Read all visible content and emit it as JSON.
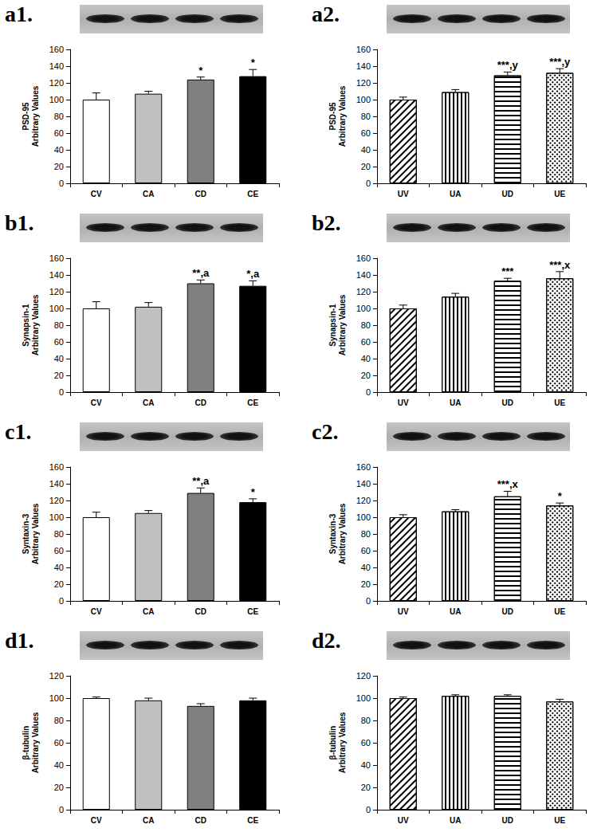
{
  "chart_data": [
    {
      "title": "a1.",
      "type": "bar",
      "ylabel": "PSD-95\nArbitrary Values",
      "categories": [
        "CV",
        "CA",
        "CD",
        "CE"
      ],
      "values": [
        100,
        107,
        124,
        128
      ],
      "errors": [
        8,
        3,
        3,
        8
      ],
      "annotations": [
        null,
        null,
        "*",
        "*"
      ],
      "colors": [
        "#ffffff",
        "#c0c0c0",
        "#808080",
        "#000000"
      ],
      "ylim": [
        0,
        160
      ],
      "yticks": [
        0,
        20,
        40,
        60,
        80,
        100,
        120,
        140,
        160
      ],
      "grid": false
    },
    {
      "title": "a2.",
      "type": "bar",
      "ylabel": "PSD-95\nArbitrary Values",
      "categories": [
        "UV",
        "UA",
        "UD",
        "UE"
      ],
      "values": [
        100,
        109,
        129,
        132
      ],
      "errors": [
        3,
        3,
        4,
        5
      ],
      "annotations": [
        null,
        null,
        "***,y",
        "***,y"
      ],
      "colors": [
        "#ffffff",
        "#ffffff",
        "#ffffff",
        "#ffffff"
      ],
      "ylim": [
        0,
        160
      ],
      "yticks": [
        0,
        20,
        40,
        60,
        80,
        100,
        120,
        140,
        160
      ],
      "grid": false
    },
    {
      "title": "b1.",
      "type": "bar",
      "ylabel": "Synapsin-1\nArbitrary Values",
      "categories": [
        "CV",
        "CA",
        "CD",
        "CE"
      ],
      "values": [
        100,
        102,
        130,
        127
      ],
      "errors": [
        8,
        5,
        4,
        6
      ],
      "annotations": [
        null,
        null,
        "**,a",
        "*,a"
      ],
      "colors": [
        "#ffffff",
        "#c0c0c0",
        "#808080",
        "#000000"
      ],
      "ylim": [
        0,
        160
      ],
      "yticks": [
        0,
        20,
        40,
        60,
        80,
        100,
        120,
        140,
        160
      ],
      "grid": false
    },
    {
      "title": "b2.",
      "type": "bar",
      "ylabel": "Synapsin-1\nArbitrary Values",
      "categories": [
        "UV",
        "UA",
        "UD",
        "UE"
      ],
      "values": [
        100,
        114,
        133,
        136
      ],
      "errors": [
        4,
        4,
        3,
        8
      ],
      "annotations": [
        null,
        null,
        "***",
        "***,x"
      ],
      "colors": [
        "#ffffff",
        "#ffffff",
        "#ffffff",
        "#ffffff"
      ],
      "ylim": [
        0,
        160
      ],
      "yticks": [
        0,
        20,
        40,
        60,
        80,
        100,
        120,
        140,
        160
      ],
      "grid": false
    },
    {
      "title": "c1.",
      "type": "bar",
      "ylabel": "Syntaxin-3\nArbitrary Values",
      "categories": [
        "CV",
        "CA",
        "CD",
        "CE"
      ],
      "values": [
        100,
        105,
        129,
        118
      ],
      "errors": [
        6,
        3,
        6,
        4
      ],
      "annotations": [
        null,
        null,
        "**,a",
        "*"
      ],
      "colors": [
        "#ffffff",
        "#c0c0c0",
        "#808080",
        "#000000"
      ],
      "ylim": [
        0,
        160
      ],
      "yticks": [
        0,
        20,
        40,
        60,
        80,
        100,
        120,
        140,
        160
      ],
      "grid": false
    },
    {
      "title": "c2.",
      "type": "bar",
      "ylabel": "Syntaxin-3\nArbitrary Values",
      "categories": [
        "UV",
        "UA",
        "UD",
        "UE"
      ],
      "values": [
        100,
        107,
        125,
        114
      ],
      "errors": [
        3,
        2,
        6,
        3
      ],
      "annotations": [
        null,
        null,
        "***,x",
        "*"
      ],
      "colors": [
        "#ffffff",
        "#ffffff",
        "#ffffff",
        "#ffffff"
      ],
      "ylim": [
        0,
        160
      ],
      "yticks": [
        0,
        20,
        40,
        60,
        80,
        100,
        120,
        140,
        160
      ],
      "grid": false
    },
    {
      "title": "d1.",
      "type": "bar",
      "ylabel": "β-tubulin\nArbitrary Values",
      "categories": [
        "CV",
        "CA",
        "CD",
        "CE"
      ],
      "values": [
        100,
        98,
        93,
        98
      ],
      "errors": [
        1,
        2,
        2,
        2
      ],
      "annotations": [
        null,
        null,
        null,
        null
      ],
      "colors": [
        "#ffffff",
        "#c0c0c0",
        "#808080",
        "#000000"
      ],
      "ylim": [
        0,
        120
      ],
      "yticks": [
        0,
        20,
        40,
        60,
        80,
        100,
        120
      ],
      "grid": false
    },
    {
      "title": "d2.",
      "type": "bar",
      "ylabel": "β-tubulin\nArbitrary Values",
      "categories": [
        "UV",
        "UA",
        "UD",
        "UE"
      ],
      "values": [
        100,
        102,
        102,
        97
      ],
      "errors": [
        1,
        1,
        1,
        2
      ],
      "annotations": [
        null,
        null,
        null,
        null
      ],
      "colors": [
        "#ffffff",
        "#ffffff",
        "#ffffff",
        "#ffffff"
      ],
      "ylim": [
        0,
        120
      ],
      "yticks": [
        0,
        20,
        40,
        60,
        80,
        100,
        120
      ],
      "grid": false
    }
  ]
}
